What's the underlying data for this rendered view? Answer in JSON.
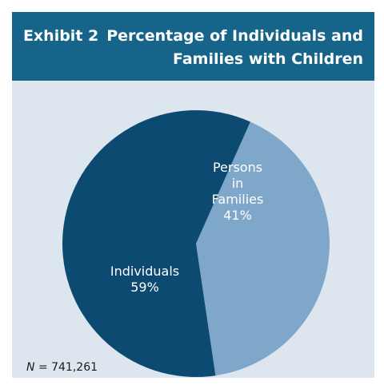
{
  "header": {
    "exhibit_label": "Exhibit 2",
    "title_line1": "Percentage of Individuals and",
    "title_line2": "Families with Children"
  },
  "footnote": {
    "n_symbol": "N",
    "n_text": " = 741,261"
  },
  "colors": {
    "header_bg": "#17648a",
    "panel_bg": "#dde6ef",
    "individuals": "#0d4a72",
    "families": "#7fa7c9"
  },
  "chart_data": {
    "type": "pie",
    "title": "Percentage of Individuals and Families with Children",
    "slices": [
      {
        "label_lines": [
          "Individuals"
        ],
        "value": 59,
        "value_label": "59%",
        "color": "#0d4a72"
      },
      {
        "label_lines": [
          "Persons",
          "in",
          "Families"
        ],
        "value": 41,
        "value_label": "41%",
        "color": "#7fa7c9"
      }
    ]
  }
}
